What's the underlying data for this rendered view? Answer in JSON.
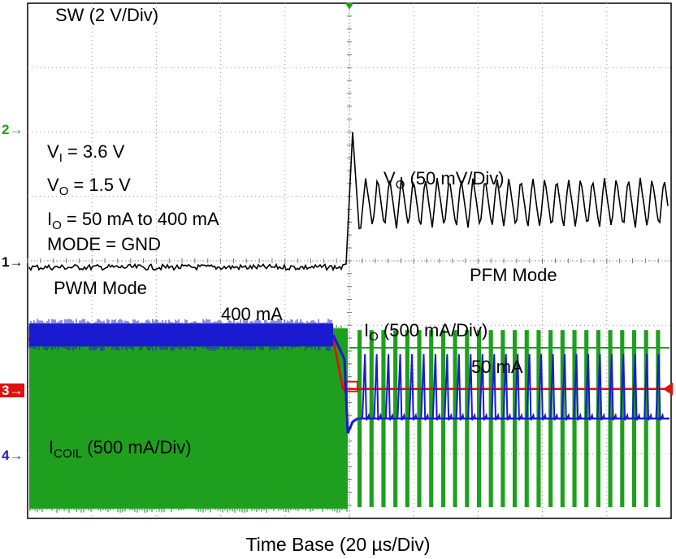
{
  "chart_data": {
    "type": "line",
    "title": "",
    "xlabel": "Time Base (20 µs/Div)",
    "ylabel": "",
    "grid": true,
    "divisions": {
      "x": 10,
      "y": 8
    },
    "xlim": [
      0,
      200
    ],
    "x_unit": "µs",
    "load_step_time_us": 100,
    "conditions": [
      {
        "sym": "V",
        "sub": "I",
        "rest": " = 3.6 V"
      },
      {
        "sym": "V",
        "sub": "O",
        "rest": " = 1.5 V"
      },
      {
        "sym": "I",
        "sub": "O",
        "rest": " = 50 mA to 400 mA"
      },
      {
        "sym": "",
        "sub": "",
        "rest": "MODE = GND"
      }
    ],
    "annotations": {
      "pwm_mode": "PWM Mode",
      "pfm_mode": "PFM Mode",
      "io_high": "400 mA",
      "io_low": "50 mA"
    },
    "series": [
      {
        "channel": "2",
        "name": "SW",
        "color": "#1ea01e",
        "label": {
          "sym": "SW",
          "sub": "",
          "rest": " (2 V/Div)"
        },
        "scale": "2 V/Div",
        "ground_div": 2.1,
        "description": "switching node: continuous PWM switching, then PFM bursts",
        "pwm_high_div": 2.95,
        "pwm_low_div": 0.15,
        "pfm_bursts": 26
      },
      {
        "channel": "1",
        "name": "VO",
        "color": "#000000",
        "label": {
          "sym": "V",
          "sub": "O",
          "rest": " (50 mV/Div)"
        },
        "scale": "50 mV/Div",
        "ground_div": 3.9,
        "overshoot_div": 2.1,
        "pfm_ripple_div": 0.8,
        "pfm_offset_div": 1.0
      },
      {
        "channel": "3",
        "name": "IO",
        "color": "#e01010",
        "label": {
          "sym": "I",
          "sub": "O",
          "rest": " (500 mA/Div)"
        },
        "scale": "500 mA/Div",
        "points": [
          [
            0,
            400
          ],
          [
            95,
            400
          ],
          [
            98,
            50
          ],
          [
            200,
            50
          ]
        ]
      },
      {
        "channel": "4",
        "name": "ICOIL",
        "color": "#1a1ad0",
        "label": {
          "sym": "I",
          "sub": "COIL",
          "rest": " (500 mA/Div)"
        },
        "scale": "500 mA/Div",
        "ground_div": 1.55,
        "pwm_level_div": 2.85,
        "pfm_peak_div": 2.55,
        "pfm_pulses": 26
      }
    ]
  }
}
